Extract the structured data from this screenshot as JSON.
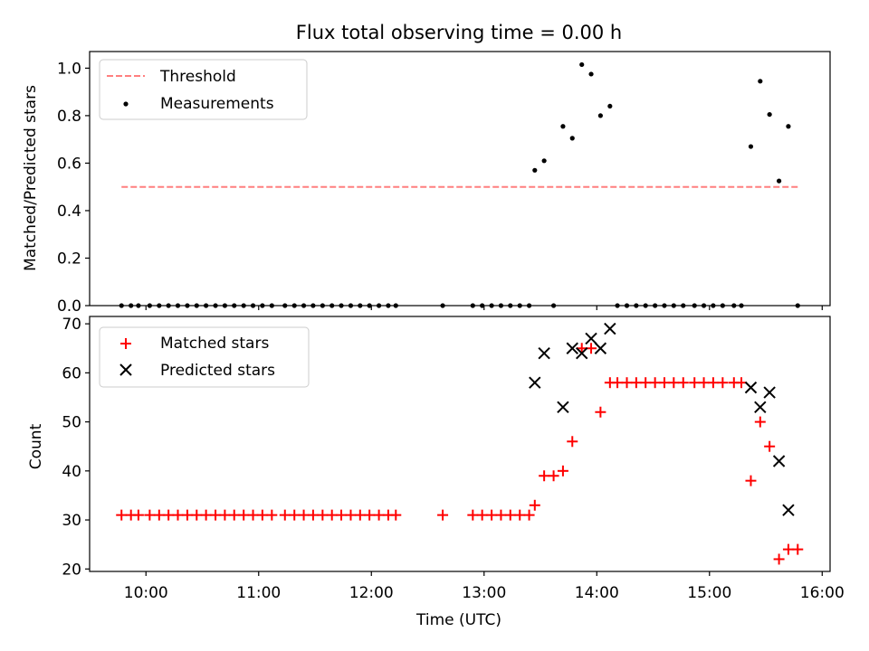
{
  "chart_data": [
    {
      "type": "scatter",
      "title": "Flux total observing time = 0.00 h",
      "ylabel": "Matched/Predicted stars",
      "xlabel": "",
      "xlim": [
        9.5,
        16.07
      ],
      "ylim": [
        0,
        1.07
      ],
      "yticks": [
        0.0,
        0.2,
        0.4,
        0.6,
        0.8,
        1.0
      ],
      "ytick_labels": [
        "0.0",
        "0.2",
        "0.4",
        "0.6",
        "0.8",
        "1.0"
      ],
      "xticks": [
        10,
        11,
        12,
        13,
        14,
        15,
        16
      ],
      "legend_position": "upper-left",
      "threshold": {
        "name": "Threshold",
        "color": "#ff7f7f",
        "y": 0.5,
        "x": [
          9.783,
          15.783
        ]
      },
      "measurements": {
        "name": "Measurements",
        "color": "#000000",
        "x": [
          9.783,
          9.867,
          9.933,
          10.033,
          10.117,
          10.2,
          10.283,
          10.367,
          10.45,
          10.533,
          10.617,
          10.7,
          10.783,
          10.867,
          10.95,
          11.033,
          11.117,
          11.233,
          11.317,
          11.4,
          11.483,
          11.567,
          11.65,
          11.733,
          11.817,
          11.9,
          11.983,
          12.067,
          12.15,
          12.217,
          12.633,
          12.9,
          12.983,
          13.067,
          13.15,
          13.233,
          13.317,
          13.4,
          13.45,
          13.533,
          13.617,
          13.7,
          13.783,
          13.867,
          13.95,
          14.033,
          14.117,
          14.183,
          14.267,
          14.35,
          14.433,
          14.517,
          14.6,
          14.683,
          14.767,
          14.867,
          14.95,
          15.033,
          15.117,
          15.217,
          15.283,
          15.367,
          15.45,
          15.533,
          15.617,
          15.7,
          15.783
        ],
        "y": [
          0,
          0,
          0,
          0,
          0,
          0,
          0,
          0,
          0,
          0,
          0,
          0,
          0,
          0,
          0,
          0,
          0,
          0,
          0,
          0,
          0,
          0,
          0,
          0,
          0,
          0,
          0,
          0,
          0,
          0,
          0,
          0,
          0,
          0,
          0,
          0,
          0,
          0,
          0.57,
          0.61,
          0,
          0.755,
          0.705,
          1.015,
          0.975,
          0.8,
          0.84,
          0,
          0,
          0,
          0,
          0,
          0,
          0,
          0,
          0,
          0,
          0,
          0,
          0,
          0,
          0.67,
          0.945,
          0.805,
          0.525,
          0.755,
          0
        ]
      }
    },
    {
      "type": "scatter",
      "title": "",
      "ylabel": "Count",
      "xlabel": "Time (UTC)",
      "xlim": [
        9.5,
        16.07
      ],
      "ylim": [
        19.5,
        71.5
      ],
      "yticks": [
        20,
        30,
        40,
        50,
        60,
        70
      ],
      "ytick_labels": [
        "20",
        "30",
        "40",
        "50",
        "60",
        "70"
      ],
      "xticks": [
        10,
        11,
        12,
        13,
        14,
        15,
        16
      ],
      "xtick_labels": [
        "10:00",
        "11:00",
        "12:00",
        "13:00",
        "14:00",
        "15:00",
        "16:00"
      ],
      "legend_position": "upper-left",
      "series": [
        {
          "name": "Matched stars",
          "marker": "plus",
          "color": "#ff0000",
          "x": [
            9.783,
            9.867,
            9.933,
            10.033,
            10.117,
            10.2,
            10.283,
            10.367,
            10.45,
            10.533,
            10.617,
            10.7,
            10.783,
            10.867,
            10.95,
            11.033,
            11.117,
            11.233,
            11.317,
            11.4,
            11.483,
            11.567,
            11.65,
            11.733,
            11.817,
            11.9,
            11.983,
            12.067,
            12.15,
            12.217,
            12.633,
            12.9,
            12.983,
            13.067,
            13.15,
            13.233,
            13.317,
            13.4,
            13.45,
            13.533,
            13.617,
            13.7,
            13.783,
            13.867,
            13.95,
            14.033,
            14.117,
            14.183,
            14.267,
            14.35,
            14.433,
            14.517,
            14.6,
            14.683,
            14.767,
            14.867,
            14.95,
            15.033,
            15.117,
            15.217,
            15.283,
            15.367,
            15.45,
            15.533,
            15.617,
            15.7,
            15.783
          ],
          "y": [
            31,
            31,
            31,
            31,
            31,
            31,
            31,
            31,
            31,
            31,
            31,
            31,
            31,
            31,
            31,
            31,
            31,
            31,
            31,
            31,
            31,
            31,
            31,
            31,
            31,
            31,
            31,
            31,
            31,
            31,
            31,
            31,
            31,
            31,
            31,
            31,
            31,
            31,
            33,
            39,
            39,
            40,
            46,
            65,
            65,
            52,
            58,
            58,
            58,
            58,
            58,
            58,
            58,
            58,
            58,
            58,
            58,
            58,
            58,
            58,
            58,
            38,
            50,
            45,
            22,
            24,
            24
          ]
        },
        {
          "name": "Predicted stars",
          "marker": "x",
          "color": "#000000",
          "x": [
            13.45,
            13.533,
            13.7,
            13.783,
            13.867,
            13.95,
            14.033,
            14.117,
            15.367,
            15.45,
            15.533,
            15.617,
            15.7
          ],
          "y": [
            58,
            64,
            53,
            65,
            64,
            67,
            65,
            69,
            57,
            53,
            56,
            42,
            32
          ]
        }
      ]
    }
  ]
}
